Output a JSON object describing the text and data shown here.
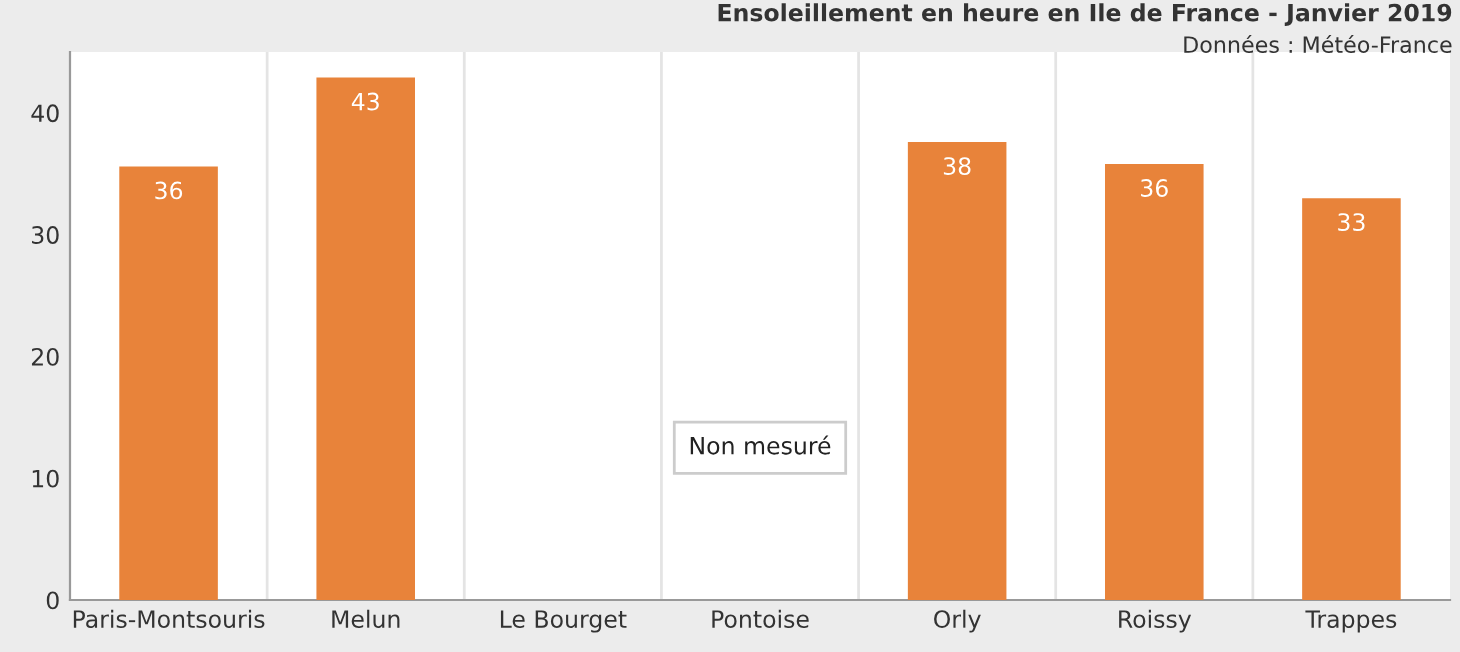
{
  "chart_data": {
    "type": "bar",
    "title": "Ensoleillement en heure en Ile de France - Janvier 2019",
    "subtitle": "Données : Météo-France",
    "categories": [
      "Paris-Montsouris",
      "Melun",
      "Le Bourget",
      "Pontoise",
      "Orly",
      "Roissy",
      "Trappes"
    ],
    "values": [
      35.6,
      42.9,
      null,
      null,
      37.6,
      35.8,
      33.0
    ],
    "value_labels": [
      "36",
      "43",
      null,
      null,
      "38",
      "36",
      "33"
    ],
    "color": "#e8833a",
    "annotations": [
      "Non mesuré"
    ],
    "ylim": [
      0,
      45
    ],
    "yticks": [
      0,
      10,
      20,
      30,
      40
    ],
    "grid": "x"
  }
}
